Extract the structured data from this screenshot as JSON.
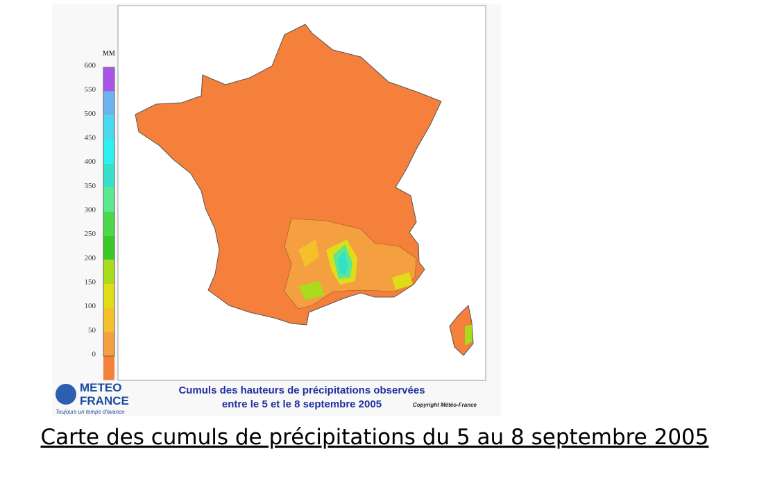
{
  "legend": {
    "unit": "MM",
    "ticks": [
      600,
      550,
      500,
      450,
      400,
      350,
      300,
      250,
      200,
      150,
      100,
      50,
      0
    ],
    "colors": [
      "#a855e8",
      "#6cb4f0",
      "#4ad8f0",
      "#2ef0f0",
      "#36e0c8",
      "#5ae890",
      "#4cd848",
      "#3cc828",
      "#a8dc1c",
      "#e0dc18",
      "#f4c02c",
      "#f4a040",
      "#f4803c"
    ]
  },
  "logo": {
    "name_line1": "METEO",
    "name_line2": "FRANCE",
    "slogan": "Toujours un temps d'avance"
  },
  "map": {
    "subtitle_line1": "Cumuls des hauteurs de précipitations observées",
    "subtitle_line2": "entre le 5 et le 8 septembre 2005",
    "copyright": "Copyright Météo-France"
  },
  "caption": "Carte des cumuls de précipitations du 5 au 8 septembre 2005"
}
